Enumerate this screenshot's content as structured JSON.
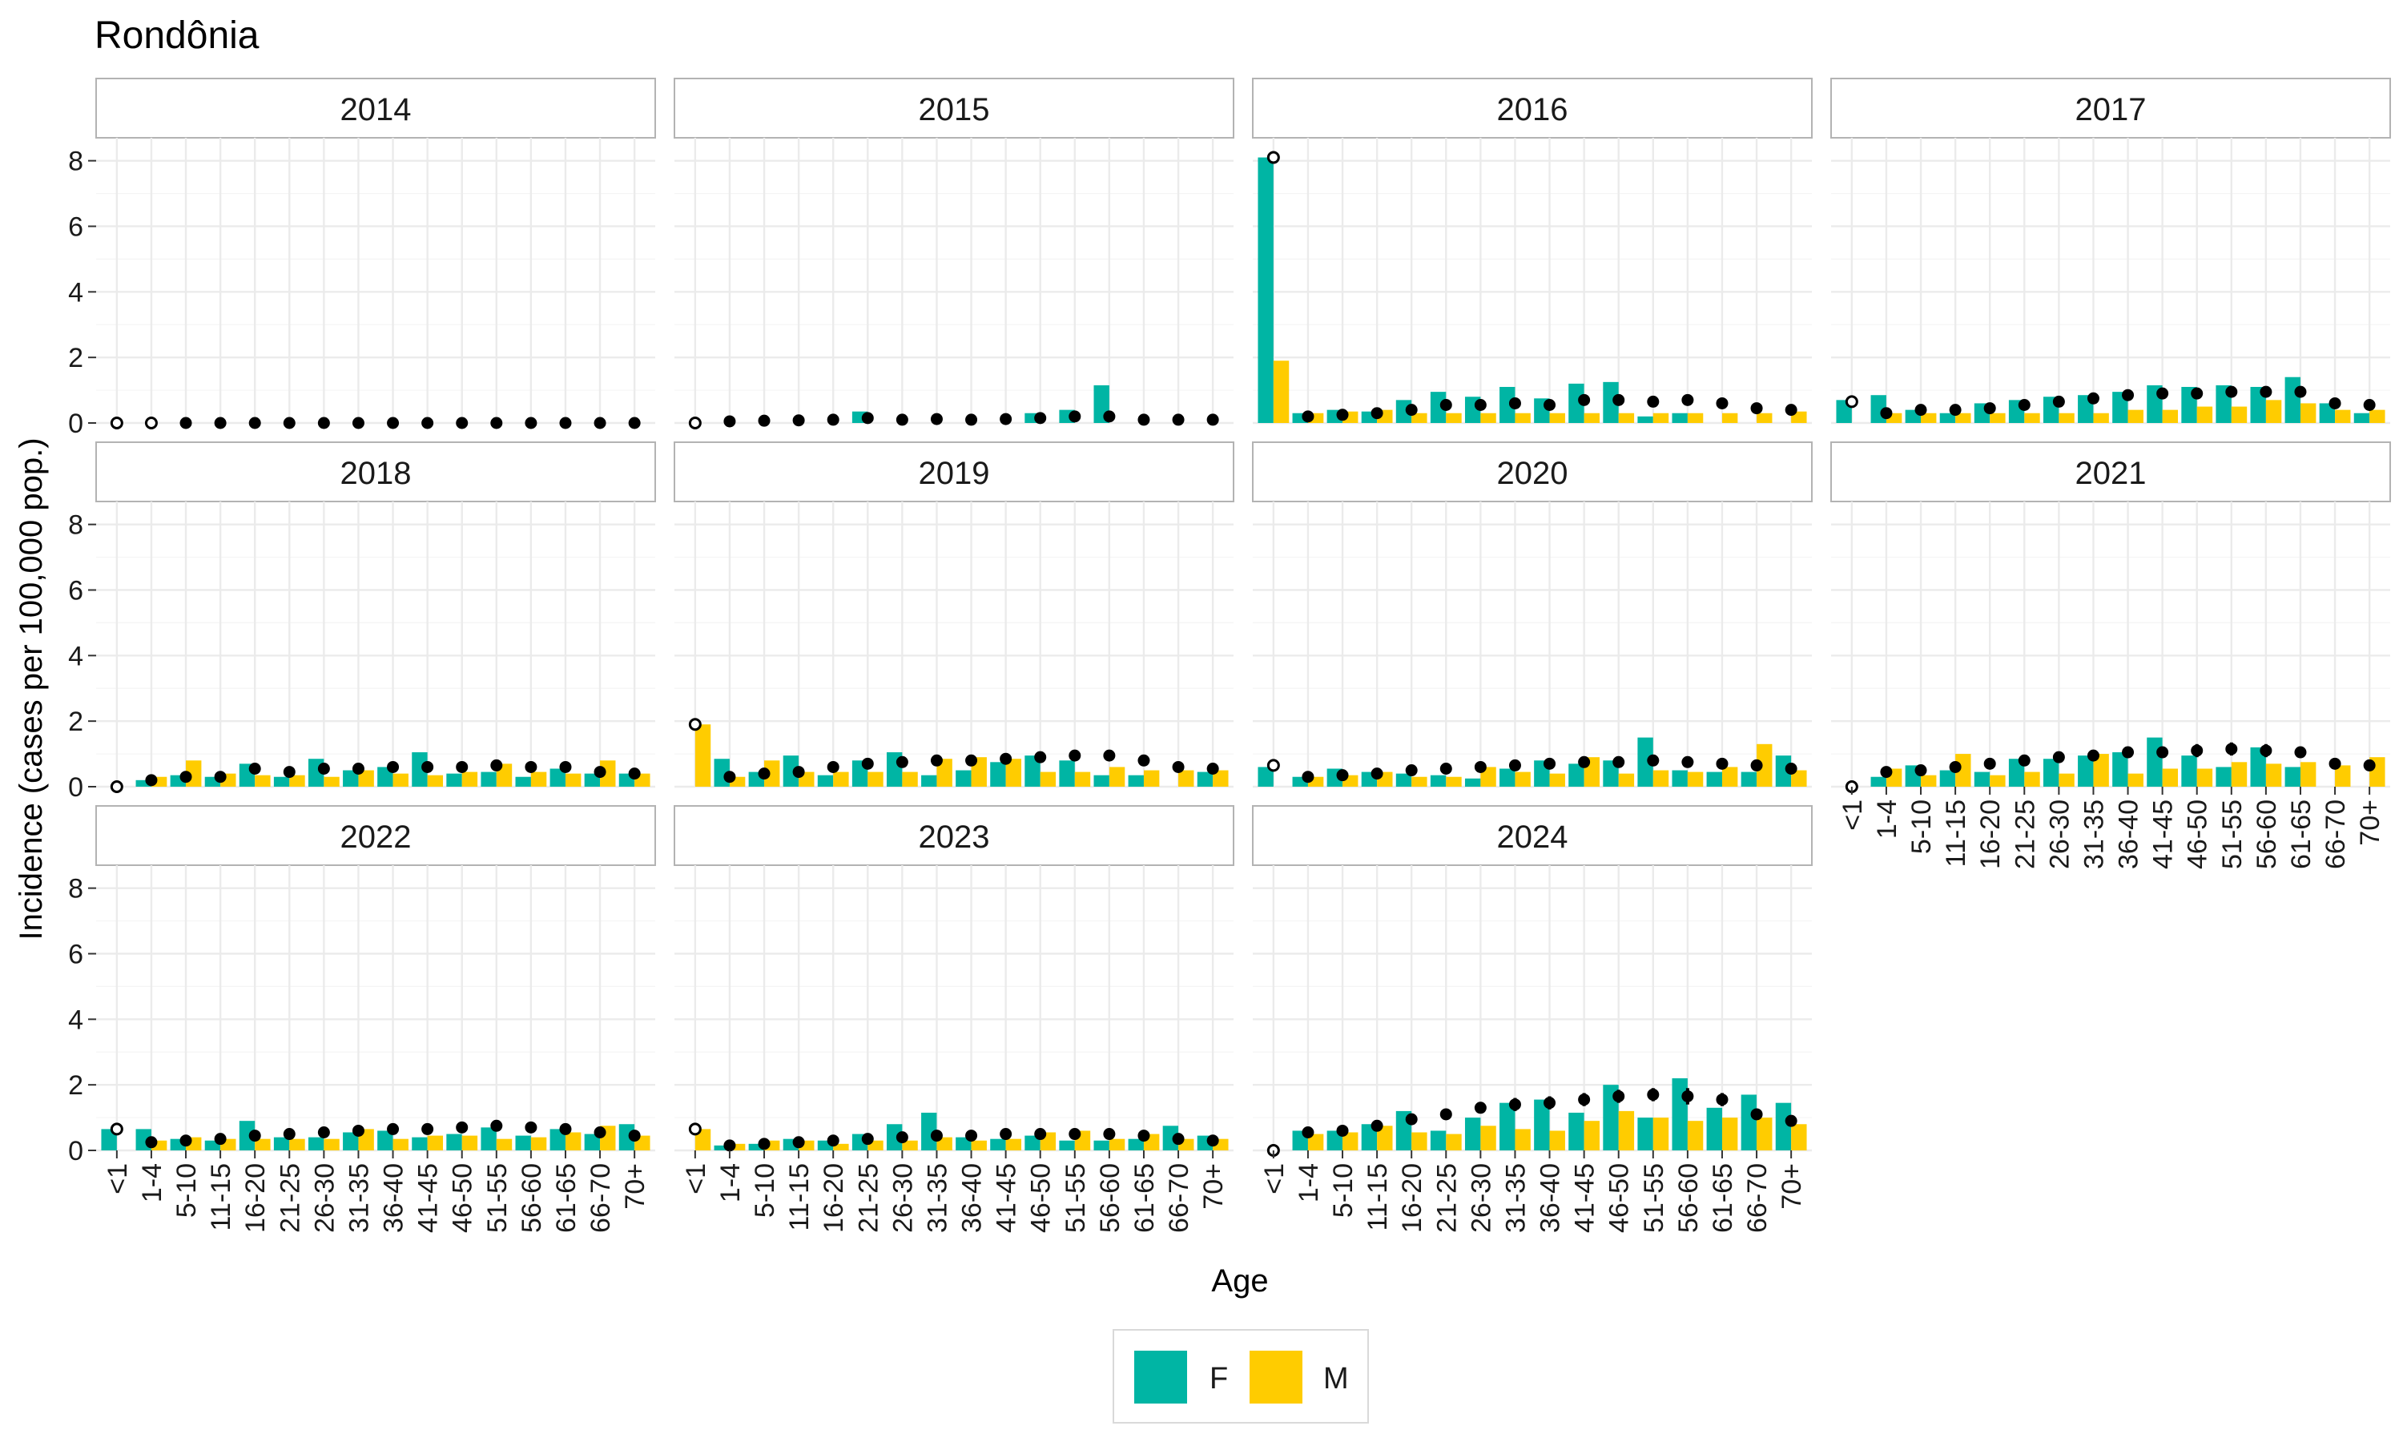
{
  "title": "Rondônia",
  "legend": {
    "placement": "bottom",
    "entries": [
      {
        "key": "F",
        "label": "F",
        "color": "#00B5A4"
      },
      {
        "key": "M",
        "label": "M",
        "color": "#FFCC00"
      }
    ]
  },
  "chart_data": {
    "type": "bar",
    "description_of_marks": "bars per sex; black points with error bars",
    "xlabel": "Age",
    "ylabel": "Incidence (cases per 100,000 pop.)",
    "ylim": [
      0,
      8.7
    ],
    "yticks": [
      0,
      2,
      4,
      6,
      8
    ],
    "grid": true,
    "categories": [
      "<1",
      "1-4",
      "5-10",
      "11-15",
      "16-20",
      "21-25",
      "26-30",
      "31-35",
      "36-40",
      "41-45",
      "46-50",
      "51-55",
      "56-60",
      "61-65",
      "66-70",
      "70+"
    ],
    "panels": [
      {
        "year": "2014",
        "F": [
          0,
          0,
          0,
          0,
          0,
          0,
          0,
          0,
          0,
          0,
          0,
          0,
          0,
          0,
          0,
          0
        ],
        "M": [
          0,
          0,
          0,
          0,
          0,
          0,
          0,
          0,
          0,
          0,
          0,
          0,
          0,
          0,
          0,
          0
        ],
        "P": [
          0,
          0,
          0,
          0,
          0,
          0,
          0,
          0,
          0,
          0,
          0,
          0,
          0,
          0,
          0,
          0
        ],
        "err": [
          0,
          0,
          0,
          0,
          0,
          0,
          0,
          0,
          0,
          0,
          0,
          0,
          0,
          0,
          0,
          0
        ]
      },
      {
        "year": "2015",
        "F": [
          0,
          0,
          0,
          0,
          0,
          0.35,
          0,
          0,
          0,
          0,
          0.3,
          0.4,
          1.15,
          0,
          0,
          0
        ],
        "M": [
          0,
          0,
          0,
          0,
          0,
          0,
          0,
          0,
          0,
          0,
          0,
          0,
          0,
          0,
          0,
          0
        ],
        "P": [
          0,
          0.05,
          0.07,
          0.08,
          0.1,
          0.15,
          0.1,
          0.12,
          0.1,
          0.12,
          0.15,
          0.2,
          0.2,
          0.1,
          0.1,
          0.1
        ],
        "err": [
          0,
          0,
          0,
          0,
          0,
          0,
          0,
          0,
          0,
          0,
          0,
          0,
          0,
          0,
          0,
          0
        ]
      },
      {
        "year": "2016",
        "F": [
          8.1,
          0.3,
          0.4,
          0.35,
          0.7,
          0.95,
          0.8,
          1.1,
          0.75,
          1.2,
          1.25,
          0.2,
          0.3,
          0,
          0,
          0
        ],
        "M": [
          1.9,
          0.3,
          0.35,
          0.4,
          0.3,
          0.3,
          0.3,
          0.3,
          0.3,
          0.3,
          0.3,
          0.3,
          0.3,
          0.3,
          0.3,
          0.35
        ],
        "P": [
          8.1,
          0.2,
          0.25,
          0.3,
          0.4,
          0.55,
          0.55,
          0.6,
          0.55,
          0.7,
          0.7,
          0.65,
          0.7,
          0.6,
          0.45,
          0.4
        ],
        "err": [
          0,
          0,
          0,
          0,
          0.05,
          0.05,
          0.05,
          0.05,
          0.05,
          0.05,
          0.05,
          0.05,
          0.05,
          0.05,
          0,
          0
        ]
      },
      {
        "year": "2017",
        "F": [
          0.7,
          0.85,
          0.4,
          0.3,
          0.6,
          0.7,
          0.8,
          0.85,
          0.95,
          1.15,
          1.1,
          1.15,
          1.1,
          1.4,
          0.6,
          0.3
        ],
        "M": [
          0,
          0.3,
          0.3,
          0.3,
          0.3,
          0.3,
          0.3,
          0.3,
          0.4,
          0.4,
          0.5,
          0.5,
          0.7,
          0.6,
          0.4,
          0.4
        ],
        "P": [
          0.65,
          0.3,
          0.4,
          0.4,
          0.45,
          0.55,
          0.65,
          0.75,
          0.85,
          0.9,
          0.9,
          0.95,
          0.95,
          0.95,
          0.6,
          0.55
        ],
        "err": [
          0,
          0,
          0.05,
          0.05,
          0.05,
          0.1,
          0.1,
          0.1,
          0.1,
          0.1,
          0.1,
          0.1,
          0.1,
          0.1,
          0.05,
          0.05
        ]
      },
      {
        "year": "2018",
        "F": [
          0,
          0.2,
          0.35,
          0.3,
          0.7,
          0.3,
          0.85,
          0.5,
          0.6,
          1.05,
          0.4,
          0.45,
          0.3,
          0.55,
          0.4,
          0.4
        ],
        "M": [
          0,
          0.3,
          0.8,
          0.4,
          0.35,
          0.35,
          0.3,
          0.5,
          0.4,
          0.35,
          0.45,
          0.7,
          0.45,
          0.4,
          0.8,
          0.4
        ],
        "P": [
          0,
          0.2,
          0.3,
          0.3,
          0.55,
          0.45,
          0.55,
          0.55,
          0.6,
          0.6,
          0.6,
          0.65,
          0.6,
          0.6,
          0.45,
          0.4
        ],
        "err": [
          0,
          0,
          0.05,
          0.05,
          0.05,
          0.05,
          0.05,
          0.05,
          0.05,
          0.05,
          0.05,
          0.1,
          0.05,
          0.05,
          0.05,
          0.05
        ]
      },
      {
        "year": "2019",
        "F": [
          0,
          0.85,
          0.45,
          0.95,
          0.35,
          0.8,
          1.05,
          0.35,
          0.5,
          0.75,
          0.95,
          0.8,
          0.35,
          0.35,
          0,
          0.45
        ],
        "M": [
          1.9,
          0.3,
          0.8,
          0.45,
          0.45,
          0.45,
          0.45,
          0.85,
          0.9,
          0.85,
          0.45,
          0.45,
          0.6,
          0.5,
          0.5,
          0.5
        ],
        "P": [
          1.9,
          0.3,
          0.4,
          0.45,
          0.6,
          0.7,
          0.75,
          0.8,
          0.8,
          0.85,
          0.9,
          0.95,
          0.95,
          0.8,
          0.6,
          0.55
        ],
        "err": [
          0,
          0,
          0.05,
          0.05,
          0.05,
          0.05,
          0.1,
          0.1,
          0.1,
          0.1,
          0.15,
          0.15,
          0.15,
          0.1,
          0.05,
          0.05
        ]
      },
      {
        "year": "2020",
        "F": [
          0.6,
          0.3,
          0.55,
          0.45,
          0.4,
          0.35,
          0.25,
          0.55,
          0.8,
          0.7,
          0.8,
          1.5,
          0.5,
          0.45,
          0.45,
          0.95
        ],
        "M": [
          0,
          0.3,
          0.35,
          0.45,
          0.3,
          0.3,
          0.6,
          0.45,
          0.4,
          0.9,
          0.4,
          0.5,
          0.45,
          0.6,
          1.3,
          0.5
        ],
        "P": [
          0.65,
          0.3,
          0.35,
          0.4,
          0.5,
          0.55,
          0.6,
          0.65,
          0.7,
          0.75,
          0.75,
          0.8,
          0.75,
          0.7,
          0.65,
          0.55
        ],
        "err": [
          0,
          0,
          0.05,
          0.05,
          0.05,
          0.05,
          0.05,
          0.05,
          0.05,
          0.1,
          0.1,
          0.1,
          0.1,
          0.1,
          0.05,
          0.05
        ]
      },
      {
        "year": "2021",
        "F": [
          0,
          0.3,
          0.65,
          0.5,
          0.45,
          0.85,
          0.85,
          0.95,
          1.05,
          1.5,
          0.95,
          0.6,
          1.2,
          0.6,
          0,
          0
        ],
        "M": [
          0,
          0.55,
          0.35,
          1.0,
          0.35,
          0.45,
          0.4,
          1.0,
          0.4,
          0.55,
          0.55,
          0.75,
          0.7,
          0.75,
          0.65,
          0.9
        ],
        "P": [
          0,
          0.45,
          0.5,
          0.6,
          0.7,
          0.8,
          0.9,
          0.95,
          1.05,
          1.05,
          1.1,
          1.15,
          1.1,
          1.05,
          0.7,
          0.65
        ],
        "err": [
          0,
          0.05,
          0.05,
          0.1,
          0.1,
          0.1,
          0.1,
          0.1,
          0.15,
          0.15,
          0.2,
          0.2,
          0.2,
          0.15,
          0.1,
          0.1
        ]
      },
      {
        "year": "2022",
        "F": [
          0.65,
          0.65,
          0.35,
          0.3,
          0.9,
          0.4,
          0.4,
          0.55,
          0.6,
          0.4,
          0.5,
          0.7,
          0.45,
          0.65,
          0.5,
          0.8
        ],
        "M": [
          0,
          0.3,
          0.4,
          0.35,
          0.35,
          0.35,
          0.35,
          0.65,
          0.35,
          0.45,
          0.45,
          0.35,
          0.4,
          0.55,
          0.75,
          0.45
        ],
        "P": [
          0.65,
          0.25,
          0.3,
          0.35,
          0.45,
          0.5,
          0.55,
          0.6,
          0.65,
          0.65,
          0.7,
          0.75,
          0.7,
          0.65,
          0.55,
          0.45
        ],
        "err": [
          0,
          0,
          0.05,
          0.05,
          0.05,
          0.05,
          0.05,
          0.05,
          0.05,
          0.05,
          0.1,
          0.1,
          0.1,
          0.1,
          0.05,
          0.05
        ]
      },
      {
        "year": "2023",
        "F": [
          0,
          0.15,
          0.2,
          0.35,
          0.3,
          0.5,
          0.8,
          1.15,
          0.4,
          0.35,
          0.45,
          0.3,
          0.3,
          0.35,
          0.75,
          0.45
        ],
        "M": [
          0.65,
          0.2,
          0.3,
          0.3,
          0.2,
          0.3,
          0.3,
          0.4,
          0.3,
          0.35,
          0.55,
          0.6,
          0.35,
          0.5,
          0.35,
          0.35
        ],
        "P": [
          0.65,
          0.15,
          0.2,
          0.25,
          0.3,
          0.35,
          0.4,
          0.45,
          0.45,
          0.5,
          0.5,
          0.5,
          0.5,
          0.45,
          0.35,
          0.3
        ],
        "err": [
          0,
          0,
          0,
          0,
          0,
          0.05,
          0.05,
          0.05,
          0.05,
          0.05,
          0.05,
          0.05,
          0.05,
          0.05,
          0.05,
          0.05
        ]
      },
      {
        "year": "2024",
        "F": [
          0,
          0.6,
          0.6,
          0.8,
          1.2,
          0.6,
          1.0,
          1.45,
          1.55,
          1.15,
          2.0,
          1.0,
          2.2,
          1.3,
          1.7,
          1.45
        ],
        "M": [
          0,
          0.5,
          0.55,
          0.75,
          0.55,
          0.5,
          0.75,
          0.65,
          0.6,
          0.9,
          1.2,
          1.0,
          0.9,
          1.0,
          1.0,
          0.8
        ],
        "P": [
          0,
          0.55,
          0.6,
          0.75,
          0.95,
          1.1,
          1.3,
          1.4,
          1.45,
          1.55,
          1.65,
          1.7,
          1.65,
          1.55,
          1.1,
          0.9
        ],
        "err": [
          0,
          0.05,
          0.05,
          0.1,
          0.1,
          0.15,
          0.15,
          0.2,
          0.2,
          0.2,
          0.2,
          0.2,
          0.25,
          0.2,
          0.15,
          0.1
        ]
      }
    ]
  }
}
